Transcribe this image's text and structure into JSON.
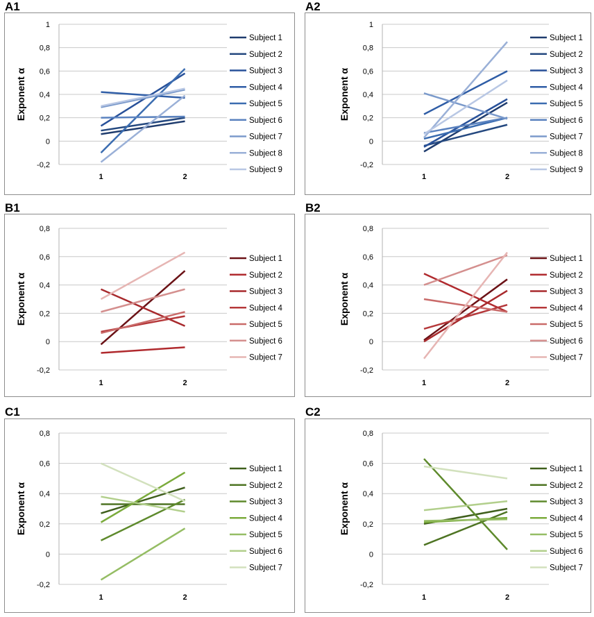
{
  "figure": {
    "y_axis_title": "Exponent α",
    "x_tick_labels": [
      "1",
      "2"
    ]
  },
  "panels": [
    {
      "label": "A1",
      "color_group": "blue"
    },
    {
      "label": "A2",
      "color_group": "blue"
    },
    {
      "label": "B1",
      "color_group": "red"
    },
    {
      "label": "B2",
      "color_group": "red"
    },
    {
      "label": "C1",
      "color_group": "green"
    },
    {
      "label": "C2",
      "color_group": "green"
    }
  ],
  "chart_data": [
    {
      "panel": "A1",
      "type": "line",
      "xlabel": "",
      "ylabel": "Exponent α",
      "categories": [
        "1",
        "2"
      ],
      "ylim": [
        -0.2,
        1
      ],
      "yticks": [
        -0.2,
        0,
        0.2,
        0.4,
        0.6,
        0.8,
        1
      ],
      "ytick_labels": [
        "-0,2",
        "0",
        "0,2",
        "0,4",
        "0,6",
        "0,8",
        "1"
      ],
      "legend_position": "right",
      "grid": true,
      "series": [
        {
          "name": "Subject 1",
          "color": "#1f3c6e",
          "values": [
            0.06,
            0.17
          ]
        },
        {
          "name": "Subject 2",
          "color": "#24487f",
          "values": [
            0.09,
            0.2
          ]
        },
        {
          "name": "Subject 3",
          "color": "#28519a",
          "values": [
            0.13,
            0.58
          ]
        },
        {
          "name": "Subject 4",
          "color": "#2f5da6",
          "values": [
            0.42,
            0.37
          ]
        },
        {
          "name": "Subject 5",
          "color": "#3a6cb0",
          "values": [
            -0.1,
            0.62
          ]
        },
        {
          "name": "Subject 6",
          "color": "#5a82bf",
          "values": [
            0.2,
            0.21
          ]
        },
        {
          "name": "Subject 7",
          "color": "#7b9acb",
          "values": [
            0.29,
            0.44
          ]
        },
        {
          "name": "Subject 8",
          "color": "#9ab0d7",
          "values": [
            -0.18,
            0.39
          ]
        },
        {
          "name": "Subject 9",
          "color": "#b8c7e4",
          "values": [
            0.3,
            0.45
          ]
        }
      ]
    },
    {
      "panel": "A2",
      "type": "line",
      "xlabel": "",
      "ylabel": "Exponent α",
      "categories": [
        "1",
        "2"
      ],
      "ylim": [
        -0.2,
        1
      ],
      "yticks": [
        -0.2,
        0,
        0.2,
        0.4,
        0.6,
        0.8,
        1
      ],
      "ytick_labels": [
        "-0,2",
        "0",
        "0,2",
        "0,4",
        "0,6",
        "0,8",
        "1"
      ],
      "legend_position": "right",
      "grid": true,
      "series": [
        {
          "name": "Subject 1",
          "color": "#1f3c6e",
          "values": [
            -0.09,
            0.33
          ]
        },
        {
          "name": "Subject 2",
          "color": "#24487f",
          "values": [
            -0.04,
            0.14
          ]
        },
        {
          "name": "Subject 3",
          "color": "#28519a",
          "values": [
            -0.05,
            0.36
          ]
        },
        {
          "name": "Subject 4",
          "color": "#2f5da6",
          "values": [
            0.23,
            0.6
          ]
        },
        {
          "name": "Subject 5",
          "color": "#3a6cb0",
          "values": [
            0.02,
            0.2
          ]
        },
        {
          "name": "Subject 6",
          "color": "#5a82bf",
          "values": [
            0.07,
            0.2
          ]
        },
        {
          "name": "Subject 7",
          "color": "#7b9acb",
          "values": [
            0.41,
            0.19
          ]
        },
        {
          "name": "Subject 8",
          "color": "#9ab0d7",
          "values": [
            0.03,
            0.85
          ]
        },
        {
          "name": "Subject 9",
          "color": "#b8c7e4",
          "values": [
            0.06,
            0.52
          ]
        }
      ]
    },
    {
      "panel": "B1",
      "type": "line",
      "xlabel": "",
      "ylabel": "Exponent α",
      "categories": [
        "1",
        "2"
      ],
      "ylim": [
        -0.2,
        0.8
      ],
      "yticks": [
        -0.2,
        0,
        0.2,
        0.4,
        0.6,
        0.8
      ],
      "ytick_labels": [
        "-0,2",
        "0",
        "0,2",
        "0,4",
        "0,6",
        "0,8"
      ],
      "legend_position": "right",
      "grid": true,
      "series": [
        {
          "name": "Subject 1",
          "color": "#6b1216",
          "values": [
            -0.02,
            0.5
          ]
        },
        {
          "name": "Subject 2",
          "color": "#b02a2e",
          "values": [
            -0.08,
            -0.04
          ]
        },
        {
          "name": "Subject 3",
          "color": "#a82a2d",
          "values": [
            0.37,
            0.11
          ]
        },
        {
          "name": "Subject 4",
          "color": "#b5383a",
          "values": [
            0.07,
            0.18
          ]
        },
        {
          "name": "Subject 5",
          "color": "#c96a69",
          "values": [
            0.06,
            0.21
          ]
        },
        {
          "name": "Subject 6",
          "color": "#d48f8e",
          "values": [
            0.21,
            0.37
          ]
        },
        {
          "name": "Subject 7",
          "color": "#e6b5b3",
          "values": [
            0.3,
            0.63
          ]
        }
      ]
    },
    {
      "panel": "B2",
      "type": "line",
      "xlabel": "",
      "ylabel": "Exponent α",
      "categories": [
        "1",
        "2"
      ],
      "ylim": [
        -0.2,
        0.8
      ],
      "yticks": [
        -0.2,
        0,
        0.2,
        0.4,
        0.6,
        0.8
      ],
      "ytick_labels": [
        "-0,2",
        "0",
        "0,2",
        "0,4",
        "0,6",
        "0,8"
      ],
      "legend_position": "right",
      "grid": true,
      "series": [
        {
          "name": "Subject 1",
          "color": "#6b1216",
          "values": [
            0.01,
            0.44
          ]
        },
        {
          "name": "Subject 2",
          "color": "#b02a2e",
          "values": [
            0.48,
            0.21
          ]
        },
        {
          "name": "Subject 3",
          "color": "#a82a2d",
          "values": [
            0.0,
            0.36
          ]
        },
        {
          "name": "Subject 4",
          "color": "#b5383a",
          "values": [
            0.09,
            0.26
          ]
        },
        {
          "name": "Subject 5",
          "color": "#c96a69",
          "values": [
            0.3,
            0.21
          ]
        },
        {
          "name": "Subject 6",
          "color": "#d48f8e",
          "values": [
            0.4,
            0.61
          ]
        },
        {
          "name": "Subject 7",
          "color": "#e6b5b3",
          "values": [
            -0.12,
            0.63
          ]
        }
      ]
    },
    {
      "panel": "C1",
      "type": "line",
      "xlabel": "",
      "ylabel": "Exponent α",
      "categories": [
        "1",
        "2"
      ],
      "ylim": [
        -0.2,
        0.8
      ],
      "yticks": [
        -0.2,
        0,
        0.2,
        0.4,
        0.6,
        0.8
      ],
      "ytick_labels": [
        "-0,2",
        "0",
        "0,2",
        "0,4",
        "0,6",
        "0,8"
      ],
      "legend_position": "right",
      "grid": true,
      "series": [
        {
          "name": "Subject 1",
          "color": "#3f5f1c",
          "values": [
            0.27,
            0.44
          ]
        },
        {
          "name": "Subject 2",
          "color": "#4e7423",
          "values": [
            0.33,
            0.33
          ]
        },
        {
          "name": "Subject 3",
          "color": "#5e8a2c",
          "values": [
            0.09,
            0.36
          ]
        },
        {
          "name": "Subject 4",
          "color": "#7bab3c",
          "values": [
            0.21,
            0.54
          ]
        },
        {
          "name": "Subject 5",
          "color": "#95bd64",
          "values": [
            -0.17,
            0.17
          ]
        },
        {
          "name": "Subject 6",
          "color": "#b2cf8c",
          "values": [
            0.38,
            0.28
          ]
        },
        {
          "name": "Subject 7",
          "color": "#d2e1bd",
          "values": [
            0.6,
            0.35
          ]
        }
      ]
    },
    {
      "panel": "C2",
      "type": "line",
      "xlabel": "",
      "ylabel": "Exponent α",
      "categories": [
        "1",
        "2"
      ],
      "ylim": [
        -0.2,
        0.8
      ],
      "yticks": [
        -0.2,
        0,
        0.2,
        0.4,
        0.6,
        0.8
      ],
      "ytick_labels": [
        "-0,2",
        "0",
        "0,2",
        "0,4",
        "0,6",
        "0,8"
      ],
      "legend_position": "right",
      "grid": true,
      "series": [
        {
          "name": "Subject 1",
          "color": "#3f5f1c",
          "values": [
            0.2,
            0.3
          ]
        },
        {
          "name": "Subject 2",
          "color": "#4e7423",
          "values": [
            0.06,
            0.28
          ]
        },
        {
          "name": "Subject 3",
          "color": "#5e8a2c",
          "values": [
            0.63,
            0.03
          ]
        },
        {
          "name": "Subject 4",
          "color": "#7bab3c",
          "values": [
            0.21,
            0.24
          ]
        },
        {
          "name": "Subject 5",
          "color": "#95bd64",
          "values": [
            0.22,
            0.23
          ]
        },
        {
          "name": "Subject 6",
          "color": "#b2cf8c",
          "values": [
            0.29,
            0.35
          ]
        },
        {
          "name": "Subject 7",
          "color": "#d2e1bd",
          "values": [
            0.58,
            0.5
          ]
        }
      ]
    }
  ]
}
